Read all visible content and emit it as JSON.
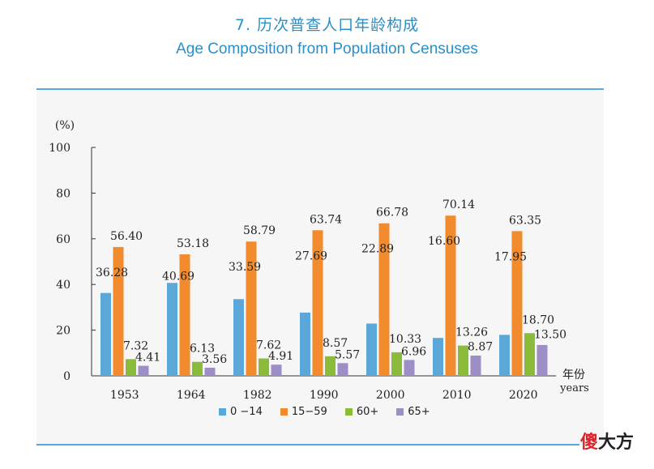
{
  "header": {
    "title_zh": "7. 历次普查人口年龄构成",
    "title_en": "Age Composition from Population Censuses"
  },
  "watermark": {
    "part1": "傻",
    "part2": "大方"
  },
  "chart_data": {
    "type": "bar",
    "title": "",
    "ylabel": "(%)",
    "xlabel_zh": "年份",
    "xlabel_en": "years",
    "ylim": [
      0,
      100
    ],
    "yticks": [
      0,
      20,
      40,
      60,
      80,
      100
    ],
    "grid": false,
    "legend": "bottom",
    "categories": [
      "1953",
      "1964",
      "1982",
      "1990",
      "2000",
      "2010",
      "2020"
    ],
    "series": [
      {
        "name": "0 −14",
        "color": "#5ba8d8",
        "values": [
          36.28,
          40.69,
          33.59,
          27.69,
          22.89,
          16.6,
          17.95
        ]
      },
      {
        "name": "15−59",
        "color": "#f18b2e",
        "values": [
          56.4,
          53.18,
          58.79,
          63.74,
          66.78,
          70.14,
          63.35
        ]
      },
      {
        "name": "60+",
        "color": "#8bbb3b",
        "values": [
          7.32,
          6.13,
          7.62,
          8.57,
          10.33,
          13.26,
          18.7
        ]
      },
      {
        "name": "65+",
        "color": "#9d8fc6",
        "values": [
          4.41,
          3.56,
          4.91,
          5.57,
          6.96,
          8.87,
          13.5
        ]
      }
    ],
    "value_labels": [
      [
        "36.28",
        "40.69",
        "33.59",
        "27.69",
        "22.89",
        "16.60",
        "17.95"
      ],
      [
        "56.40",
        "53.18",
        "58.79",
        "63.74",
        "66.78",
        "70.14",
        "63.35"
      ],
      [
        "7.32",
        "6.13",
        "7.62",
        "8.57",
        "10.33",
        "13.26",
        "18.70"
      ],
      [
        "4.41",
        "3.56",
        "4.91",
        "5.57",
        "6.96",
        "8.87",
        "13.50"
      ]
    ]
  }
}
